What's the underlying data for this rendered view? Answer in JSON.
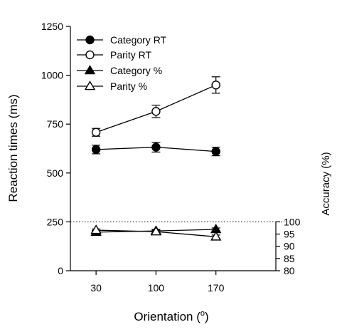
{
  "chart_data": {
    "type": "line",
    "x": [
      30,
      100,
      170
    ],
    "x_tick_labels": [
      "30",
      "100",
      "170"
    ],
    "xlabel_prefix": "Orientation (",
    "xlabel_sup": "o",
    "xlabel_suffix": ")",
    "ylabel": "Reaction times (ms)",
    "ylabel_right": "Accuracy (%)",
    "ylim": [
      0,
      1250
    ],
    "y_ticks": [
      0,
      250,
      500,
      750,
      1000,
      1250
    ],
    "y_tick_labels": [
      "0",
      "250",
      "500",
      "750",
      "1000",
      "1250"
    ],
    "ylim_right_shown": [
      80,
      100
    ],
    "y_right_ticks": [
      80,
      85,
      90,
      95,
      100
    ],
    "y_right_tick_labels": [
      "80",
      "85",
      "90",
      "95",
      "100"
    ],
    "reference_line": {
      "axis": "left",
      "value": 250,
      "style": "dotted"
    },
    "legend_position": "top-left",
    "series": [
      {
        "name": "Category RT",
        "axis": "left",
        "marker": "filled-circle",
        "values": [
          620,
          632,
          610
        ],
        "errors": [
          22,
          25,
          22
        ]
      },
      {
        "name": "Parity RT",
        "axis": "left",
        "marker": "open-circle",
        "values": [
          708,
          815,
          950
        ],
        "errors": [
          20,
          32,
          42
        ]
      },
      {
        "name": "Category %",
        "axis": "right",
        "marker": "filled-triangle",
        "values": [
          95.8,
          96.3,
          96.9
        ],
        "errors": [
          0.7,
          0.6,
          0.6
        ]
      },
      {
        "name": "Parity %",
        "axis": "right",
        "marker": "open-triangle",
        "values": [
          96.6,
          96.0,
          93.9
        ],
        "errors": [
          0.5,
          0.6,
          0.7
        ]
      }
    ]
  }
}
